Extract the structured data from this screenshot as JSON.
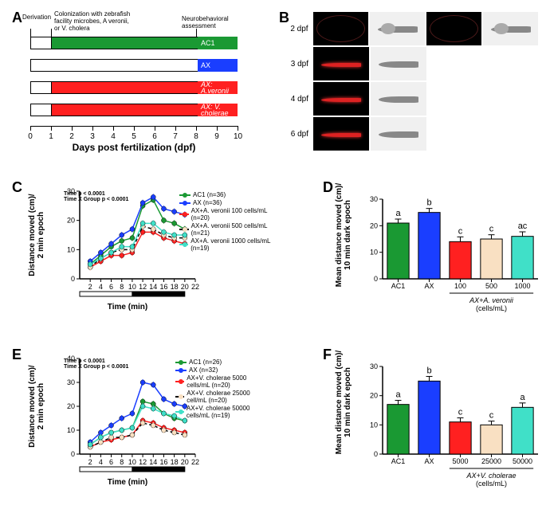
{
  "colors": {
    "ac1": "#1a9933",
    "ax": "#1a3eff",
    "red": "#ff2020",
    "bisque": "#f9e0c2",
    "turquoise": "#40e0c8",
    "black": "#000000",
    "white": "#ffffff"
  },
  "panelA": {
    "label": "A",
    "top_labels": {
      "derivation": "Derivation",
      "colonization": "Colonization with zebrafish\nfacility microbes, A veronii,\nor V. cholera",
      "assessment": "Neurobehavioral\nassessment"
    },
    "bars": [
      {
        "name": "AC1",
        "color_key": "ac1",
        "start": 1,
        "end": 10,
        "label": "AC1"
      },
      {
        "name": "AX",
        "color_key": "white",
        "start": 0,
        "end": 10,
        "label": "AX",
        "label_color_key": "ax"
      },
      {
        "name": "AX_Averonii",
        "color_key": "red",
        "start": 1,
        "end": 10,
        "label": "AX:\nA.veronii",
        "italic": true
      },
      {
        "name": "AX_Vcholerae",
        "color_key": "red",
        "start": 1,
        "end": 10,
        "label": "AX: V.\ncholerae",
        "italic": true
      }
    ],
    "x_axis": {
      "min": 0,
      "max": 10,
      "step": 1,
      "title": "Days post fertilization (dpf)"
    }
  },
  "panelB": {
    "label": "B",
    "rows": [
      {
        "dpf": "2 dpf",
        "cells": 4
      },
      {
        "dpf": "3 dpf",
        "cells": 2
      },
      {
        "dpf": "4 dpf",
        "cells": 2
      },
      {
        "dpf": "6 dpf",
        "cells": 2
      }
    ]
  },
  "panelC": {
    "label": "C",
    "stats": "Time p < 0.0001\nTime X Group p < 0.0001",
    "y_title": "Distance moved (cm)/\n2 min epoch",
    "x_title": "Time (min)",
    "x": {
      "min": 0,
      "max": 22,
      "step": 2,
      "ticks": [
        2,
        4,
        6,
        8,
        10,
        12,
        14,
        16,
        18,
        20,
        22
      ]
    },
    "y": {
      "min": 0,
      "max": 30,
      "step": 10
    },
    "light_bar": {
      "light": [
        0,
        10
      ],
      "dark": [
        10,
        20
      ]
    },
    "series": [
      {
        "name": "AC1 (n=36)",
        "color_key": "ac1",
        "marker": "circle",
        "data": [
          [
            2,
            5
          ],
          [
            4,
            8
          ],
          [
            6,
            11
          ],
          [
            8,
            13
          ],
          [
            10,
            14
          ],
          [
            12,
            25
          ],
          [
            14,
            27
          ],
          [
            16,
            20
          ],
          [
            18,
            19
          ],
          [
            20,
            17
          ]
        ]
      },
      {
        "name": "AX (n=36)",
        "color_key": "ax",
        "marker": "circle",
        "data": [
          [
            2,
            6
          ],
          [
            4,
            9
          ],
          [
            6,
            12
          ],
          [
            8,
            15
          ],
          [
            10,
            17
          ],
          [
            12,
            26
          ],
          [
            14,
            28
          ],
          [
            16,
            24
          ],
          [
            18,
            23
          ],
          [
            20,
            22
          ]
        ]
      },
      {
        "name": "AX+A. veronii 100 cells/mL (n=20)",
        "color_key": "red",
        "marker": "circle",
        "data": [
          [
            2,
            4
          ],
          [
            4,
            6
          ],
          [
            6,
            8
          ],
          [
            8,
            8
          ],
          [
            10,
            9
          ],
          [
            12,
            16
          ],
          [
            14,
            16
          ],
          [
            16,
            14
          ],
          [
            18,
            13
          ],
          [
            20,
            12
          ]
        ]
      },
      {
        "name": "AX+A. veronii 500 cells/mL (n=21)",
        "color_key": "bisque",
        "marker": "circle",
        "dash": true,
        "data": [
          [
            2,
            4
          ],
          [
            4,
            7
          ],
          [
            6,
            9
          ],
          [
            8,
            10
          ],
          [
            10,
            10
          ],
          [
            12,
            18
          ],
          [
            14,
            17
          ],
          [
            16,
            15
          ],
          [
            18,
            14
          ],
          [
            20,
            14
          ]
        ]
      },
      {
        "name": "AX+A. veronii 1000 cells/mL (n=19)",
        "color_key": "turquoise",
        "marker": "circle",
        "data": [
          [
            2,
            5
          ],
          [
            4,
            7
          ],
          [
            6,
            9
          ],
          [
            8,
            11
          ],
          [
            10,
            11
          ],
          [
            12,
            19
          ],
          [
            14,
            19
          ],
          [
            16,
            16
          ],
          [
            18,
            15
          ],
          [
            20,
            15
          ]
        ]
      }
    ]
  },
  "panelD": {
    "label": "D",
    "y_title": "Mean distance moved (cm)/\n10 min dark epoch",
    "y": {
      "min": 0,
      "max": 30,
      "step": 10
    },
    "x_group_label": "AX+A. veronii\n(cells/mL)",
    "bars": [
      {
        "label": "AC1",
        "value": 21,
        "err": 1.5,
        "color_key": "ac1",
        "sig": "a"
      },
      {
        "label": "AX",
        "value": 25,
        "err": 1.5,
        "color_key": "ax",
        "sig": "b"
      },
      {
        "label": "100",
        "value": 14,
        "err": 1.8,
        "color_key": "red",
        "sig": "c"
      },
      {
        "label": "500",
        "value": 15,
        "err": 1.6,
        "color_key": "bisque",
        "sig": "c"
      },
      {
        "label": "1000",
        "value": 16,
        "err": 1.7,
        "color_key": "turquoise",
        "sig": "ac"
      }
    ]
  },
  "panelE": {
    "label": "E",
    "stats": "Time p < 0.0001\nTime X Group p < 0.0001",
    "y_title": "Distance moved (cm)/\n2 min epoch",
    "x_title": "Time (min)",
    "x": {
      "min": 0,
      "max": 22,
      "step": 2,
      "ticks": [
        2,
        4,
        6,
        8,
        10,
        12,
        14,
        16,
        18,
        20,
        22
      ]
    },
    "y": {
      "min": 0,
      "max": 40,
      "step": 10
    },
    "light_bar": {
      "light": [
        0,
        10
      ],
      "dark": [
        10,
        20
      ]
    },
    "series": [
      {
        "name": "AC1 (n=26)",
        "color_key": "ac1",
        "marker": "circle",
        "data": [
          [
            2,
            4
          ],
          [
            4,
            7
          ],
          [
            6,
            9
          ],
          [
            8,
            10
          ],
          [
            10,
            11
          ],
          [
            12,
            22
          ],
          [
            14,
            21
          ],
          [
            16,
            17
          ],
          [
            18,
            15
          ],
          [
            20,
            14
          ]
        ]
      },
      {
        "name": "AX (n=32)",
        "color_key": "ax",
        "marker": "circle",
        "data": [
          [
            2,
            5
          ],
          [
            4,
            9
          ],
          [
            6,
            12
          ],
          [
            8,
            15
          ],
          [
            10,
            17
          ],
          [
            12,
            30
          ],
          [
            14,
            29
          ],
          [
            16,
            23
          ],
          [
            18,
            21
          ],
          [
            20,
            20
          ]
        ]
      },
      {
        "name": "AX+V. cholerae 5000 cells/mL (n=20)",
        "color_key": "red",
        "marker": "circle",
        "data": [
          [
            2,
            3
          ],
          [
            4,
            5
          ],
          [
            6,
            6
          ],
          [
            8,
            7
          ],
          [
            10,
            8
          ],
          [
            12,
            14
          ],
          [
            14,
            13
          ],
          [
            16,
            11
          ],
          [
            18,
            10
          ],
          [
            20,
            9
          ]
        ]
      },
      {
        "name": "AX+V. cholerae 25000 cell/mL (n=20)",
        "color_key": "bisque",
        "marker": "circle",
        "dash": true,
        "data": [
          [
            2,
            3
          ],
          [
            4,
            5
          ],
          [
            6,
            7
          ],
          [
            8,
            7
          ],
          [
            10,
            8
          ],
          [
            12,
            13
          ],
          [
            14,
            12
          ],
          [
            16,
            10
          ],
          [
            18,
            9
          ],
          [
            20,
            8
          ]
        ]
      },
      {
        "name": "AX+V. cholerae 50000 cells/mL (n=19)",
        "color_key": "turquoise",
        "marker": "circle",
        "data": [
          [
            2,
            4
          ],
          [
            4,
            7
          ],
          [
            6,
            9
          ],
          [
            8,
            10
          ],
          [
            10,
            11
          ],
          [
            12,
            20
          ],
          [
            14,
            19
          ],
          [
            16,
            17
          ],
          [
            18,
            16
          ],
          [
            20,
            14
          ]
        ]
      }
    ]
  },
  "panelF": {
    "label": "F",
    "y_title": "Mean distance moved (cm)/\n10 min dark epoch",
    "y": {
      "min": 0,
      "max": 30,
      "step": 10
    },
    "x_group_label": "AX+V. cholerae\n(cells/mL)",
    "bars": [
      {
        "label": "AC1",
        "value": 17,
        "err": 1.4,
        "color_key": "ac1",
        "sig": "a"
      },
      {
        "label": "AX",
        "value": 25,
        "err": 1.6,
        "color_key": "ax",
        "sig": "b"
      },
      {
        "label": "5000",
        "value": 11,
        "err": 1.4,
        "color_key": "red",
        "sig": "c"
      },
      {
        "label": "25000",
        "value": 10,
        "err": 1.3,
        "color_key": "bisque",
        "sig": "c"
      },
      {
        "label": "50000",
        "value": 16,
        "err": 1.5,
        "color_key": "turquoise",
        "sig": "a"
      }
    ]
  }
}
